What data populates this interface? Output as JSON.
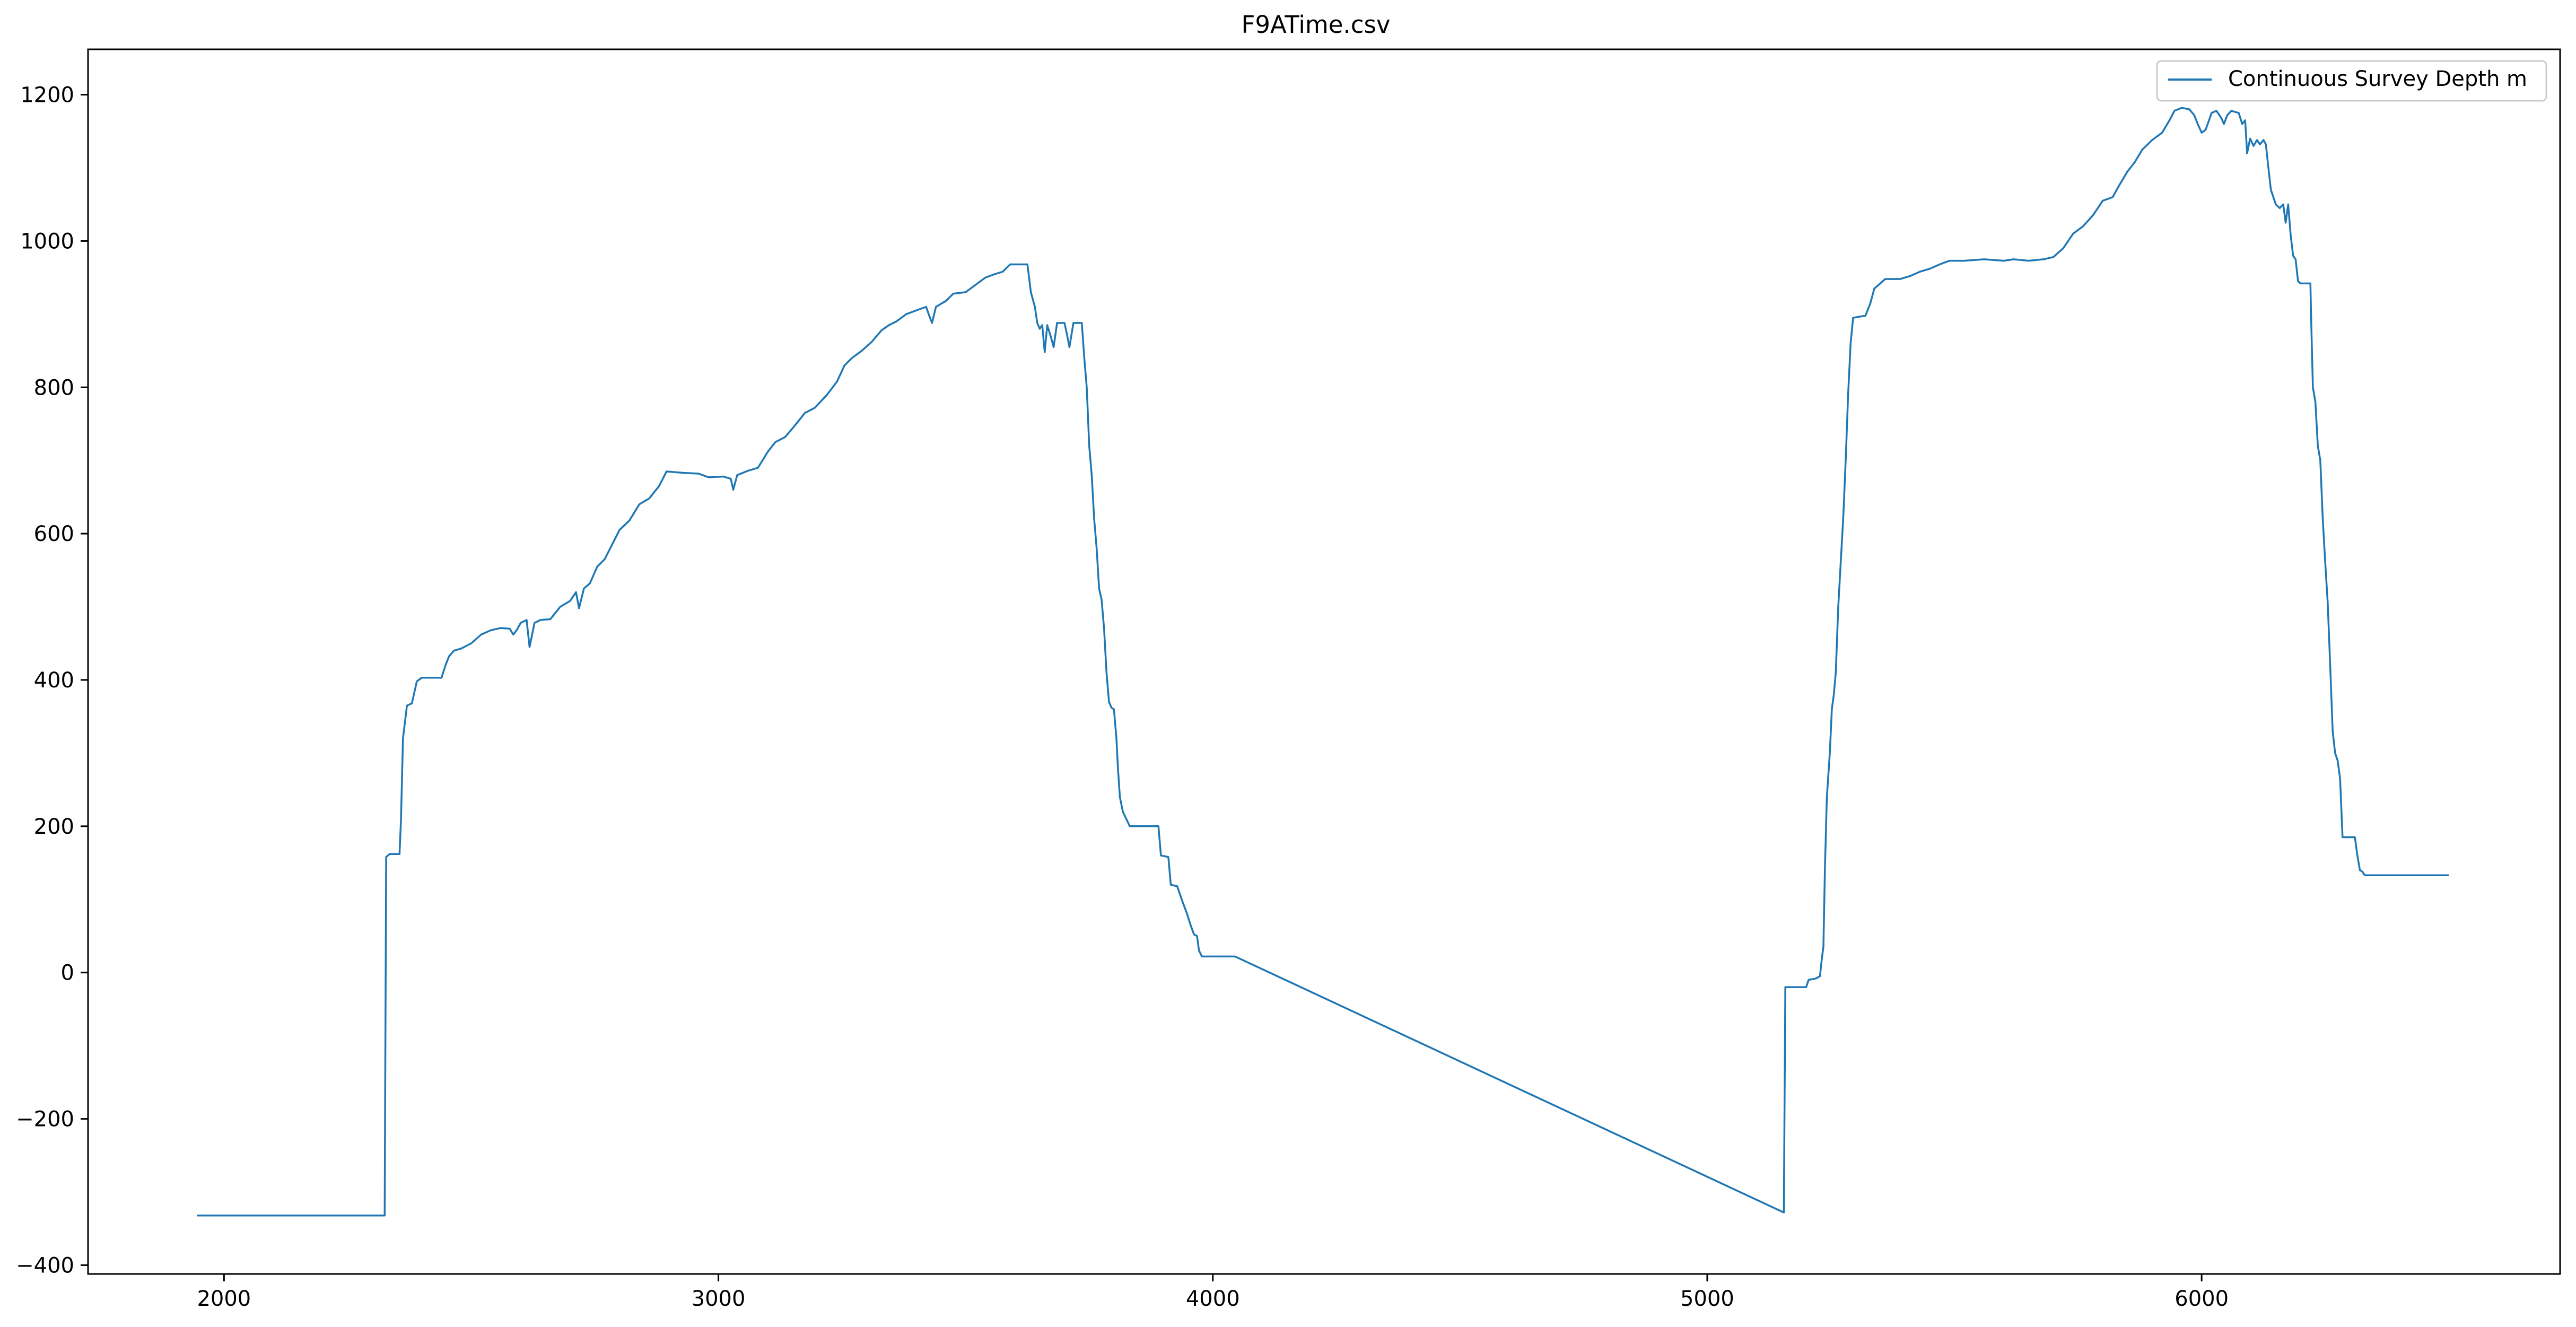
{
  "colors": {
    "series": "#1f77b4",
    "axes": "#000000",
    "background": "#ffffff",
    "legend_border": "#cccccc"
  },
  "chart_data": {
    "type": "line",
    "title": "F9ATime.csv",
    "xlabel": "",
    "ylabel": "",
    "xlim": [
      1725,
      6725
    ],
    "ylim": [
      -412,
      1262
    ],
    "xticks": [
      2000,
      3000,
      4000,
      5000,
      6000
    ],
    "yticks": [
      -400,
      -200,
      0,
      200,
      400,
      600,
      800,
      1000,
      1200
    ],
    "grid": false,
    "legend_position": "top-right",
    "series": [
      {
        "name": "Continuous Survey Depth m",
        "points": [
          [
            1945,
            -332
          ],
          [
            2325,
            -332
          ],
          [
            2328,
            158
          ],
          [
            2335,
            162
          ],
          [
            2355,
            162
          ],
          [
            2358,
            210
          ],
          [
            2362,
            320
          ],
          [
            2370,
            365
          ],
          [
            2380,
            368
          ],
          [
            2390,
            398
          ],
          [
            2400,
            403
          ],
          [
            2440,
            403
          ],
          [
            2448,
            420
          ],
          [
            2455,
            432
          ],
          [
            2465,
            440
          ],
          [
            2480,
            443
          ],
          [
            2500,
            450
          ],
          [
            2520,
            462
          ],
          [
            2540,
            468
          ],
          [
            2560,
            471
          ],
          [
            2578,
            470
          ],
          [
            2585,
            462
          ],
          [
            2592,
            468
          ],
          [
            2600,
            478
          ],
          [
            2612,
            482
          ],
          [
            2618,
            445
          ],
          [
            2628,
            478
          ],
          [
            2640,
            482
          ],
          [
            2660,
            483
          ],
          [
            2680,
            500
          ],
          [
            2700,
            508
          ],
          [
            2712,
            520
          ],
          [
            2718,
            498
          ],
          [
            2728,
            525
          ],
          [
            2740,
            532
          ],
          [
            2755,
            555
          ],
          [
            2770,
            565
          ],
          [
            2785,
            585
          ],
          [
            2800,
            605
          ],
          [
            2820,
            618
          ],
          [
            2840,
            640
          ],
          [
            2860,
            648
          ],
          [
            2880,
            665
          ],
          [
            2895,
            685
          ],
          [
            2930,
            683
          ],
          [
            2960,
            682
          ],
          [
            2980,
            677
          ],
          [
            3010,
            678
          ],
          [
            3025,
            675
          ],
          [
            3030,
            660
          ],
          [
            3038,
            680
          ],
          [
            3060,
            686
          ],
          [
            3080,
            690
          ],
          [
            3100,
            712
          ],
          [
            3115,
            725
          ],
          [
            3135,
            732
          ],
          [
            3155,
            748
          ],
          [
            3175,
            765
          ],
          [
            3195,
            772
          ],
          [
            3220,
            790
          ],
          [
            3240,
            808
          ],
          [
            3255,
            830
          ],
          [
            3270,
            840
          ],
          [
            3290,
            850
          ],
          [
            3310,
            862
          ],
          [
            3330,
            878
          ],
          [
            3345,
            885
          ],
          [
            3360,
            890
          ],
          [
            3380,
            900
          ],
          [
            3400,
            905
          ],
          [
            3420,
            910
          ],
          [
            3428,
            895
          ],
          [
            3432,
            888
          ],
          [
            3440,
            910
          ],
          [
            3460,
            918
          ],
          [
            3475,
            928
          ],
          [
            3500,
            930
          ],
          [
            3520,
            940
          ],
          [
            3540,
            950
          ],
          [
            3560,
            955
          ],
          [
            3575,
            958
          ],
          [
            3590,
            968
          ],
          [
            3625,
            968
          ],
          [
            3632,
            930
          ],
          [
            3640,
            910
          ],
          [
            3645,
            888
          ],
          [
            3650,
            880
          ],
          [
            3655,
            885
          ],
          [
            3660,
            848
          ],
          [
            3665,
            885
          ],
          [
            3672,
            870
          ],
          [
            3678,
            855
          ],
          [
            3685,
            888
          ],
          [
            3700,
            888
          ],
          [
            3705,
            872
          ],
          [
            3710,
            855
          ],
          [
            3718,
            888
          ],
          [
            3735,
            888
          ],
          [
            3740,
            840
          ],
          [
            3745,
            800
          ],
          [
            3750,
            720
          ],
          [
            3755,
            680
          ],
          [
            3760,
            620
          ],
          [
            3765,
            580
          ],
          [
            3770,
            525
          ],
          [
            3775,
            510
          ],
          [
            3780,
            470
          ],
          [
            3785,
            410
          ],
          [
            3790,
            370
          ],
          [
            3795,
            362
          ],
          [
            3800,
            360
          ],
          [
            3805,
            320
          ],
          [
            3808,
            280
          ],
          [
            3812,
            240
          ],
          [
            3818,
            220
          ],
          [
            3825,
            210
          ],
          [
            3832,
            200
          ],
          [
            3890,
            200
          ],
          [
            3895,
            160
          ],
          [
            3910,
            158
          ],
          [
            3915,
            120
          ],
          [
            3928,
            118
          ],
          [
            3938,
            98
          ],
          [
            3948,
            80
          ],
          [
            3955,
            65
          ],
          [
            3962,
            52
          ],
          [
            3968,
            50
          ],
          [
            3972,
            30
          ],
          [
            3978,
            22
          ],
          [
            4045,
            22
          ],
          [
            5155,
            -328
          ],
          [
            5158,
            -20
          ],
          [
            5200,
            -20
          ],
          [
            5205,
            -10
          ],
          [
            5220,
            -8
          ],
          [
            5228,
            -5
          ],
          [
            5232,
            20
          ],
          [
            5235,
            35
          ],
          [
            5238,
            140
          ],
          [
            5242,
            240
          ],
          [
            5248,
            300
          ],
          [
            5252,
            360
          ],
          [
            5256,
            380
          ],
          [
            5260,
            410
          ],
          [
            5265,
            500
          ],
          [
            5270,
            560
          ],
          [
            5275,
            620
          ],
          [
            5280,
            700
          ],
          [
            5285,
            790
          ],
          [
            5290,
            860
          ],
          [
            5295,
            895
          ],
          [
            5320,
            898
          ],
          [
            5330,
            915
          ],
          [
            5338,
            935
          ],
          [
            5350,
            942
          ],
          [
            5360,
            948
          ],
          [
            5390,
            948
          ],
          [
            5410,
            952
          ],
          [
            5430,
            958
          ],
          [
            5450,
            962
          ],
          [
            5470,
            968
          ],
          [
            5490,
            973
          ],
          [
            5520,
            973
          ],
          [
            5560,
            975
          ],
          [
            5600,
            973
          ],
          [
            5620,
            975
          ],
          [
            5650,
            973
          ],
          [
            5680,
            975
          ],
          [
            5700,
            978
          ],
          [
            5720,
            990
          ],
          [
            5740,
            1010
          ],
          [
            5760,
            1020
          ],
          [
            5780,
            1035
          ],
          [
            5800,
            1055
          ],
          [
            5820,
            1060
          ],
          [
            5835,
            1078
          ],
          [
            5850,
            1095
          ],
          [
            5865,
            1108
          ],
          [
            5880,
            1125
          ],
          [
            5900,
            1138
          ],
          [
            5920,
            1148
          ],
          [
            5935,
            1165
          ],
          [
            5945,
            1178
          ],
          [
            5960,
            1182
          ],
          [
            5975,
            1180
          ],
          [
            5985,
            1172
          ],
          [
            5992,
            1160
          ],
          [
            6000,
            1148
          ],
          [
            6008,
            1152
          ],
          [
            6015,
            1165
          ],
          [
            6020,
            1175
          ],
          [
            6030,
            1178
          ],
          [
            6040,
            1168
          ],
          [
            6045,
            1160
          ],
          [
            6052,
            1172
          ],
          [
            6060,
            1178
          ],
          [
            6075,
            1175
          ],
          [
            6082,
            1160
          ],
          [
            6088,
            1165
          ],
          [
            6092,
            1120
          ],
          [
            6098,
            1140
          ],
          [
            6105,
            1130
          ],
          [
            6112,
            1138
          ],
          [
            6118,
            1132
          ],
          [
            6125,
            1138
          ],
          [
            6130,
            1132
          ],
          [
            6135,
            1100
          ],
          [
            6140,
            1070
          ],
          [
            6145,
            1060
          ],
          [
            6150,
            1050
          ],
          [
            6158,
            1045
          ],
          [
            6165,
            1050
          ],
          [
            6170,
            1025
          ],
          [
            6175,
            1050
          ],
          [
            6180,
            1008
          ],
          [
            6185,
            980
          ],
          [
            6190,
            975
          ],
          [
            6195,
            945
          ],
          [
            6200,
            942
          ],
          [
            6220,
            942
          ],
          [
            6222,
            880
          ],
          [
            6225,
            800
          ],
          [
            6230,
            780
          ],
          [
            6235,
            720
          ],
          [
            6240,
            700
          ],
          [
            6245,
            620
          ],
          [
            6250,
            560
          ],
          [
            6255,
            505
          ],
          [
            6260,
            420
          ],
          [
            6265,
            330
          ],
          [
            6270,
            300
          ],
          [
            6275,
            290
          ],
          [
            6280,
            265
          ],
          [
            6285,
            185
          ],
          [
            6310,
            185
          ],
          [
            6315,
            160
          ],
          [
            6320,
            140
          ],
          [
            6325,
            138
          ],
          [
            6330,
            133
          ],
          [
            6350,
            133
          ],
          [
            6500,
            133
          ]
        ]
      }
    ]
  }
}
